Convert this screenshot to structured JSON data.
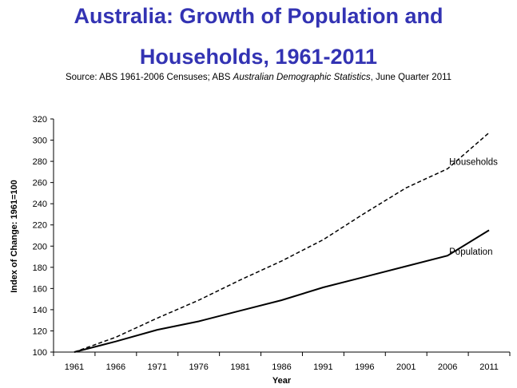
{
  "header": {
    "title_line1": "Australia: Growth of Population and",
    "title_line2": "Households, 1961-2011",
    "source_prefix": "Source: ABS 1961-2006 Censuses; ABS ",
    "source_italic": "Australian Demographic Statistics",
    "source_suffix": ", June Quarter 2011"
  },
  "chart_data": {
    "type": "line",
    "title": "Australia: Growth of Population and Households, 1961-2011",
    "xlabel": "Year",
    "ylabel": "Index of Change: 1961=100",
    "x": [
      1961,
      1966,
      1971,
      1976,
      1981,
      1986,
      1991,
      1996,
      2001,
      2006,
      2011
    ],
    "xlim": [
      1958.5,
      2013.5
    ],
    "ylim": [
      100,
      320
    ],
    "yticks": [
      100,
      120,
      140,
      160,
      180,
      200,
      220,
      240,
      260,
      280,
      300,
      320
    ],
    "grid": false,
    "legend": "none",
    "series": [
      {
        "name": "Households",
        "style": "dashed",
        "color": "#000000",
        "values": [
          100,
          114,
          132,
          149,
          168,
          186,
          206,
          231,
          255,
          273,
          307
        ]
      },
      {
        "name": "Population",
        "style": "solid",
        "color": "#000000",
        "values": [
          100,
          110,
          121,
          129,
          139,
          149,
          161,
          171,
          181,
          191,
          215
        ]
      }
    ]
  }
}
